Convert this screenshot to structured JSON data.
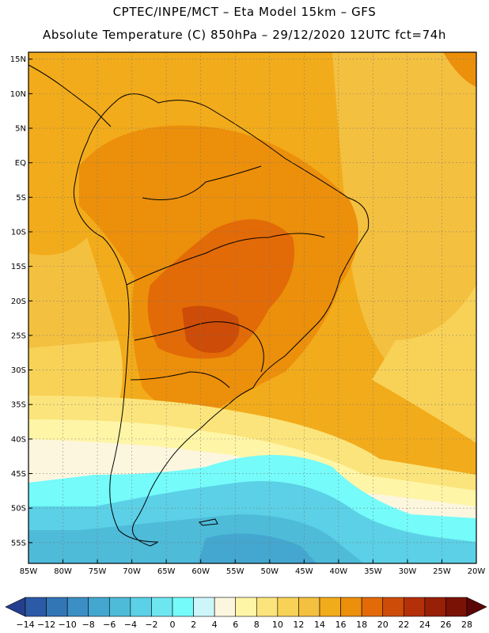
{
  "header": {
    "line1": "CPTEC/INPE/MCT –  Eta Model 15km – GFS",
    "line2": "Absolute Temperature (C) 850hPa – 29/12/2020 12UTC fct=74h"
  },
  "map": {
    "lat_labels": [
      "15N",
      "10N",
      "5N",
      "EQ",
      "5S",
      "10S",
      "15S",
      "20S",
      "25S",
      "30S",
      "35S",
      "40S",
      "45S",
      "50S",
      "55S"
    ],
    "lon_labels": [
      "85W",
      "80W",
      "75W",
      "70W",
      "65W",
      "60W",
      "55W",
      "50W",
      "45W",
      "40W",
      "35W",
      "30W",
      "25W",
      "20W"
    ],
    "lat_range": [
      -58,
      16
    ],
    "lon_range": [
      -85,
      -20
    ],
    "grid": "dotted"
  },
  "colorbar": {
    "labels": [
      "-14",
      "-12",
      "-10",
      "-8",
      "-6",
      "-4",
      "-2",
      "0",
      "2",
      "4",
      "6",
      "8",
      "10",
      "12",
      "14",
      "16",
      "18",
      "20",
      "22",
      "24",
      "26",
      "28"
    ],
    "colors": [
      "#243f8e",
      "#2d5aa6",
      "#3376b6",
      "#3c8fc4",
      "#44a7cf",
      "#4ebbd9",
      "#5bd0e6",
      "#6ee6f0",
      "#74fbfa",
      "#cdf6fb",
      "#fdf6de",
      "#fef5a6",
      "#fbe47b",
      "#f8d257",
      "#f4c03f",
      "#f2ab1a",
      "#ec8f0b",
      "#e26a07",
      "#cd4c07",
      "#b33008",
      "#972007",
      "#7a1306",
      "#5b0606"
    ]
  },
  "chart_data": {
    "type": "heatmap",
    "variable": "Absolute Temperature (C) 850hPa",
    "x_ticks": [
      "85W",
      "80W",
      "75W",
      "70W",
      "65W",
      "60W",
      "55W",
      "50W",
      "45W",
      "40W",
      "35W",
      "30W",
      "25W",
      "20W"
    ],
    "y_ticks": [
      "15N",
      "10N",
      "5N",
      "EQ",
      "5S",
      "10S",
      "15S",
      "20S",
      "25S",
      "30S",
      "35S",
      "40S",
      "45S",
      "50S",
      "55S"
    ],
    "color_scale": [
      "-14",
      "-12",
      "-10",
      "-8",
      "-6",
      "-4",
      "-2",
      "0",
      "2",
      "4",
      "6",
      "8",
      "10",
      "12",
      "14",
      "16",
      "18",
      "20",
      "22",
      "24",
      "26",
      "28"
    ]
  }
}
